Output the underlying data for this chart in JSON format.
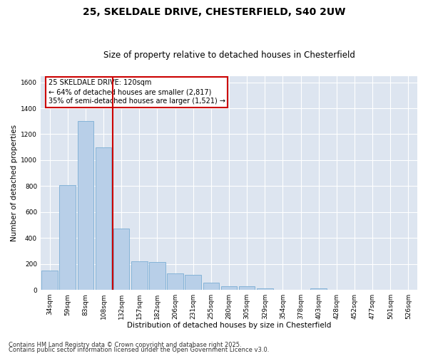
{
  "title_line1": "25, SKELDALE DRIVE, CHESTERFIELD, S40 2UW",
  "title_line2": "Size of property relative to detached houses in Chesterfield",
  "xlabel": "Distribution of detached houses by size in Chesterfield",
  "ylabel": "Number of detached properties",
  "categories": [
    "34sqm",
    "59sqm",
    "83sqm",
    "108sqm",
    "132sqm",
    "157sqm",
    "182sqm",
    "206sqm",
    "231sqm",
    "255sqm",
    "280sqm",
    "305sqm",
    "329sqm",
    "354sqm",
    "378sqm",
    "403sqm",
    "428sqm",
    "452sqm",
    "477sqm",
    "501sqm",
    "526sqm"
  ],
  "values": [
    150,
    810,
    1300,
    1100,
    475,
    220,
    215,
    125,
    115,
    55,
    30,
    30,
    10,
    0,
    0,
    10,
    0,
    0,
    0,
    0,
    0
  ],
  "bar_color": "#b8cfe8",
  "bar_edge_color": "#7aadd4",
  "background_color": "#dde5f0",
  "grid_color": "#ffffff",
  "vline_color": "#cc0000",
  "vline_pos": 3.5,
  "annotation_text": "25 SKELDALE DRIVE: 120sqm\n← 64% of detached houses are smaller (2,817)\n35% of semi-detached houses are larger (1,521) →",
  "annotation_box_color": "#ffffff",
  "annotation_box_edge_color": "#cc0000",
  "ylim": [
    0,
    1650
  ],
  "yticks": [
    0,
    200,
    400,
    600,
    800,
    1000,
    1200,
    1400,
    1600
  ],
  "footer_line1": "Contains HM Land Registry data © Crown copyright and database right 2025.",
  "footer_line2": "Contains public sector information licensed under the Open Government Licence v3.0.",
  "title_fontsize": 10,
  "subtitle_fontsize": 8.5,
  "axis_label_fontsize": 7.5,
  "tick_fontsize": 6.5,
  "annotation_fontsize": 7,
  "footer_fontsize": 6
}
